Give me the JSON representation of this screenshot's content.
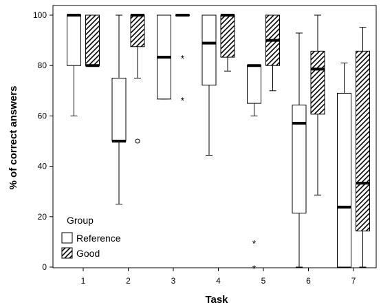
{
  "chart_data": {
    "type": "boxplot",
    "title": "",
    "xlabel": "Task",
    "ylabel": "% of correct answers",
    "categories": [
      "1",
      "2",
      "3",
      "4",
      "5",
      "6",
      "7"
    ],
    "ylim": [
      0,
      100
    ],
    "yticks": [
      0,
      20,
      40,
      60,
      80,
      100
    ],
    "grid": false,
    "legend": {
      "title": "Group",
      "placement": "bottom-left",
      "entries": [
        "Reference",
        "Good"
      ]
    },
    "series": [
      {
        "name": "Reference",
        "fill": "plain",
        "boxes": [
          {
            "min": 60,
            "q1": 80,
            "median": 100,
            "q3": 100,
            "max": 100,
            "outliers": [],
            "extremes": []
          },
          {
            "min": 25,
            "q1": 50,
            "median": 50,
            "q3": 75,
            "max": 100,
            "outliers": [],
            "extremes": []
          },
          {
            "min": 66.7,
            "q1": 66.7,
            "median": 83.3,
            "q3": 100,
            "max": 100,
            "outliers": [],
            "extremes": []
          },
          {
            "min": 44.4,
            "q1": 72.2,
            "median": 88.9,
            "q3": 100,
            "max": 100,
            "outliers": [],
            "extremes": []
          },
          {
            "min": 60,
            "q1": 65,
            "median": 80,
            "q3": 80,
            "max": 80,
            "outliers": [],
            "extremes": [
              10,
              0
            ]
          },
          {
            "min": 0,
            "q1": 21.4,
            "median": 57.1,
            "q3": 64.3,
            "max": 92.9,
            "outliers": [],
            "extremes": []
          },
          {
            "min": 0,
            "q1": 0,
            "median": 23.8,
            "q3": 69,
            "max": 81,
            "outliers": [],
            "extremes": []
          }
        ]
      },
      {
        "name": "Good",
        "fill": "hatched",
        "boxes": [
          {
            "min": 80,
            "q1": 80,
            "median": 80,
            "q3": 100,
            "max": 100,
            "outliers": [],
            "extremes": []
          },
          {
            "min": 75,
            "q1": 87.5,
            "median": 100,
            "q3": 100,
            "max": 100,
            "outliers": [
              50
            ],
            "extremes": []
          },
          {
            "min": 100,
            "q1": 100,
            "median": 100,
            "q3": 100,
            "max": 100,
            "outliers": [],
            "extremes": [
              83.3,
              66.7
            ]
          },
          {
            "min": 77.8,
            "q1": 83.3,
            "median": 100,
            "q3": 100,
            "max": 100,
            "outliers": [],
            "extremes": []
          },
          {
            "min": 70,
            "q1": 80,
            "median": 90,
            "q3": 100,
            "max": 100,
            "outliers": [],
            "extremes": []
          },
          {
            "min": 28.6,
            "q1": 60.7,
            "median": 78.6,
            "q3": 85.7,
            "max": 100,
            "outliers": [],
            "extremes": []
          },
          {
            "min": 0,
            "q1": 14.3,
            "median": 33.3,
            "q3": 85.7,
            "max": 95.2,
            "outliers": [],
            "extremes": []
          }
        ]
      }
    ]
  },
  "colors": {
    "stroke": "#000000",
    "box_fill": "#ffffff",
    "background": "#ffffff"
  }
}
